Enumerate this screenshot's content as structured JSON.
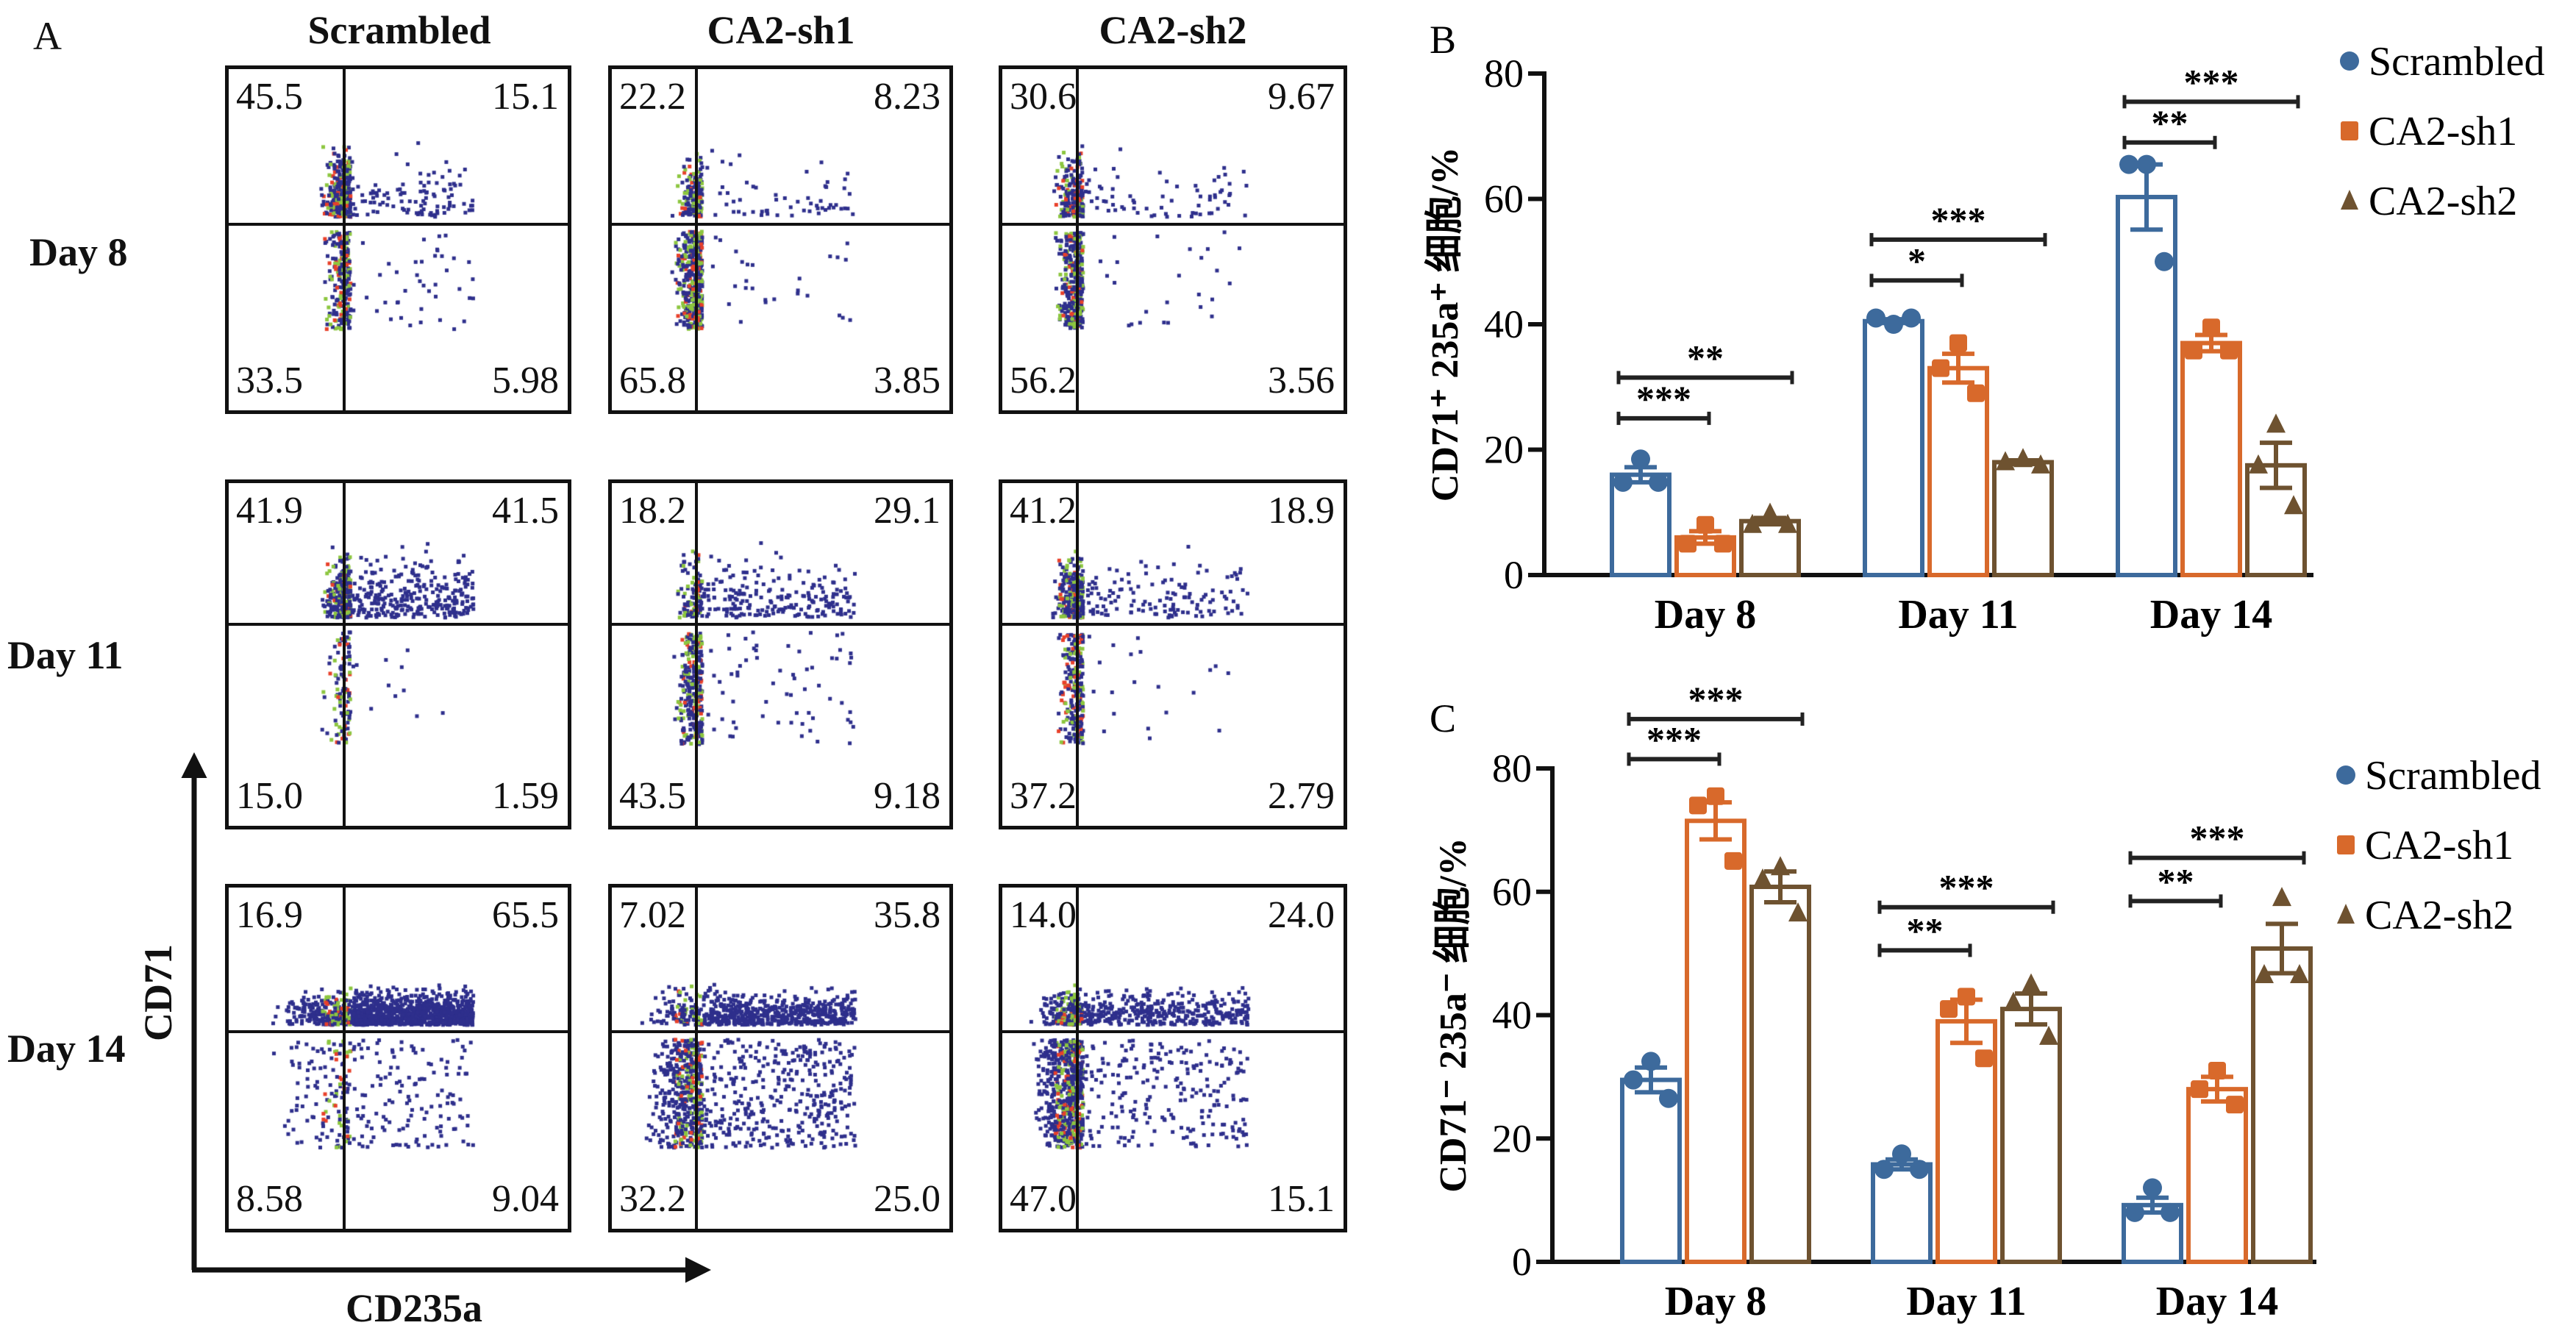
{
  "panel_a": {
    "label": "A",
    "columns": [
      "Scrambled",
      "CA2-sh1",
      "CA2-sh2"
    ],
    "rows": [
      "Day 8",
      "Day 11",
      "Day 14"
    ],
    "y_axis": "CD71",
    "x_axis": "CD235a",
    "quadrant_order": [
      "upper-left",
      "upper-right",
      "lower-left",
      "lower-right"
    ],
    "plots": [
      [
        [
          "45.5",
          "15.1",
          "33.5",
          "5.98"
        ],
        [
          "22.2",
          "8.23",
          "65.8",
          "3.85"
        ],
        [
          "30.6",
          "9.67",
          "56.2",
          "3.56"
        ]
      ],
      [
        [
          "41.9",
          "41.5",
          "15.0",
          "1.59"
        ],
        [
          "18.2",
          "29.1",
          "43.5",
          "9.18"
        ],
        [
          "41.2",
          "18.9",
          "37.2",
          "2.79"
        ]
      ],
      [
        [
          "16.9",
          "65.5",
          "8.58",
          "9.04"
        ],
        [
          "7.02",
          "35.8",
          "32.2",
          "25.0"
        ],
        [
          "14.0",
          "24.0",
          "47.0",
          "15.1"
        ]
      ]
    ],
    "dot_colors": {
      "low": "#2e2f8c",
      "mid": "#8cc63f",
      "high": "#e8402a"
    }
  },
  "chart_data": [
    {
      "panel": "B",
      "type": "bar",
      "ylabel": "CD71⁺ 235a⁺ 细胞/%",
      "categories": [
        "Day 8",
        "Day 11",
        "Day 14"
      ],
      "ylim": [
        0,
        80
      ],
      "yticks": [
        0,
        20,
        40,
        60,
        80
      ],
      "legend_placement": "top-right",
      "series": [
        {
          "name": "Scrambled",
          "color": "#3d6a9c",
          "marker": "circle",
          "values": [
            16,
            40.5,
            60.3
          ],
          "sem": [
            1.2,
            0.3,
            5.2
          ],
          "points": [
            [
              18.5,
              14.8,
              14.8
            ],
            [
              40,
              41,
              41
            ],
            [
              65.5,
              65.5,
              50
            ]
          ]
        },
        {
          "name": "CA2-sh1",
          "color": "#d8692b",
          "marker": "square",
          "values": [
            6,
            33,
            37
          ],
          "sem": [
            1,
            2.3,
            1.3
          ],
          "points": [
            [
              8,
              5,
              5
            ],
            [
              37,
              33,
              29
            ],
            [
              39.5,
              35.8,
              35.8
            ]
          ]
        },
        {
          "name": "CA2-sh2",
          "color": "#6e5230",
          "marker": "triangle",
          "values": [
            8.6,
            18,
            17.5
          ],
          "sem": [
            0.5,
            0.3,
            3.6
          ],
          "points": [
            [
              9.8,
              8,
              8
            ],
            [
              18.5,
              18,
              17.5
            ],
            [
              24,
              17.5,
              11
            ]
          ]
        }
      ],
      "significance": [
        {
          "category": "Day 8",
          "from": "Scrambled",
          "to": "CA2-sh1",
          "label": "***",
          "y": 25
        },
        {
          "category": "Day 8",
          "from": "Scrambled",
          "to": "CA2-sh2",
          "label": "**",
          "y": 31.5
        },
        {
          "category": "Day 11",
          "from": "Scrambled",
          "to": "CA2-sh1",
          "label": "*",
          "y": 47
        },
        {
          "category": "Day 11",
          "from": "Scrambled",
          "to": "CA2-sh2",
          "label": "***",
          "y": 53.5
        },
        {
          "category": "Day 14",
          "from": "Scrambled",
          "to": "CA2-sh1",
          "label": "**",
          "y": 69
        },
        {
          "category": "Day 14",
          "from": "Scrambled",
          "to": "CA2-sh2",
          "label": "***",
          "y": 75.5
        }
      ]
    },
    {
      "panel": "C",
      "type": "bar",
      "ylabel": "CD71⁻ 235a⁻ 细胞/%",
      "categories": [
        "Day 8",
        "Day 11",
        "Day 14"
      ],
      "ylim": [
        0,
        80
      ],
      "yticks": [
        0,
        20,
        40,
        60,
        80
      ],
      "legend_placement": "right",
      "series": [
        {
          "name": "Scrambled",
          "color": "#3d6a9c",
          "marker": "circle",
          "values": [
            29.5,
            15.8,
            9.2
          ],
          "sem": [
            2,
            0.8,
            1.2
          ],
          "points": [
            [
              32.5,
              29.5,
              26.5
            ],
            [
              17.5,
              15,
              15
            ],
            [
              12,
              8,
              8
            ]
          ]
        },
        {
          "name": "CA2-sh1",
          "color": "#d8692b",
          "marker": "square",
          "values": [
            71.5,
            39,
            28
          ],
          "sem": [
            3,
            3.5,
            2
          ],
          "points": [
            [
              75.5,
              74,
              65
            ],
            [
              43,
              41,
              33
            ],
            [
              31,
              28,
              25.5
            ]
          ]
        },
        {
          "name": "CA2-sh2",
          "color": "#6e5230",
          "marker": "triangle",
          "values": [
            60.8,
            41,
            50.8
          ],
          "sem": [
            2.5,
            2.5,
            4
          ],
          "points": [
            [
              64,
              62,
              56.5
            ],
            [
              45,
              42,
              36.5
            ],
            [
              59,
              46.5,
              46.5
            ]
          ]
        }
      ],
      "significance": [
        {
          "category": "Day 8",
          "from": "Scrambled",
          "to": "CA2-sh1",
          "label": "***",
          "y": 81.5
        },
        {
          "category": "Day 8",
          "from": "Scrambled",
          "to": "CA2-sh2",
          "label": "***",
          "y": 88
        },
        {
          "category": "Day 11",
          "from": "Scrambled",
          "to": "CA2-sh1",
          "label": "**",
          "y": 50.5
        },
        {
          "category": "Day 11",
          "from": "Scrambled",
          "to": "CA2-sh2",
          "label": "***",
          "y": 57.5
        },
        {
          "category": "Day 14",
          "from": "Scrambled",
          "to": "CA2-sh1",
          "label": "**",
          "y": 58.5
        },
        {
          "category": "Day 14",
          "from": "Scrambled",
          "to": "CA2-sh2",
          "label": "***",
          "y": 65.5
        }
      ]
    }
  ]
}
